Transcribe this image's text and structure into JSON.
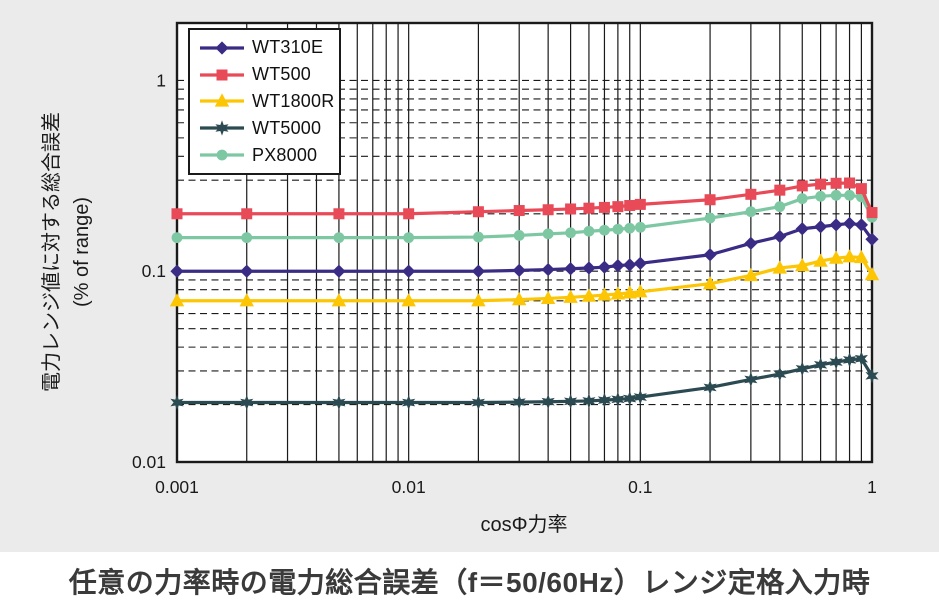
{
  "theme": {
    "chart_background": "#ebebeb",
    "plot_background": "#ffffff",
    "grid_color": "#1a1a1a",
    "axis_color": "#1a1a1a",
    "text_color": "#1a1a1a",
    "title_color": "#3a3a3a"
  },
  "chart_data": {
    "type": "line",
    "title": "任意の力率時の電力総合誤差（f＝50/60Hz）レンジ定格入力時",
    "xlabel": "cosΦ力率",
    "ylabel": "電力レンジ値に対する総合誤差",
    "ylabel_unit": "(% of range)",
    "x_scale": "log",
    "y_scale": "log",
    "xlim": [
      0.001,
      1
    ],
    "ylim": [
      0.01,
      2
    ],
    "x_tick_labels": [
      "0.001",
      "0.01",
      "0.1",
      "1"
    ],
    "x_tick_values": [
      0.001,
      0.01,
      0.1,
      1
    ],
    "y_tick_labels": [
      "1",
      "0.1",
      "0.01"
    ],
    "y_tick_values": [
      1,
      0.1,
      0.01
    ],
    "grid": {
      "vertical_style": "solid",
      "horizontal_style": "dashed"
    },
    "legend_position": "top-left",
    "x": [
      0.001,
      0.002,
      0.005,
      0.01,
      0.02,
      0.03,
      0.04,
      0.05,
      0.06,
      0.07,
      0.08,
      0.09,
      0.1,
      0.2,
      0.3,
      0.4,
      0.5,
      0.6,
      0.7,
      0.8,
      0.9,
      1
    ],
    "series": [
      {
        "name": "WT310E",
        "color": "#3a2c85",
        "marker": "diamond",
        "values": [
          0.1,
          0.1,
          0.1,
          0.1,
          0.1,
          0.101,
          0.102,
          0.103,
          0.104,
          0.105,
          0.107,
          0.108,
          0.11,
          0.122,
          0.14,
          0.152,
          0.167,
          0.171,
          0.175,
          0.178,
          0.175,
          0.147
        ]
      },
      {
        "name": "WT500",
        "color": "#e84a58",
        "marker": "square",
        "values": [
          0.2,
          0.2,
          0.2,
          0.2,
          0.205,
          0.208,
          0.21,
          0.212,
          0.214,
          0.216,
          0.218,
          0.221,
          0.224,
          0.237,
          0.253,
          0.266,
          0.28,
          0.286,
          0.289,
          0.29,
          0.271,
          0.203
        ]
      },
      {
        "name": "WT1800R",
        "color": "#fcc605",
        "marker": "triangle",
        "values": [
          0.07,
          0.07,
          0.07,
          0.07,
          0.07,
          0.071,
          0.072,
          0.073,
          0.074,
          0.075,
          0.076,
          0.077,
          0.078,
          0.086,
          0.095,
          0.104,
          0.107,
          0.113,
          0.117,
          0.119,
          0.118,
          0.096
        ]
      },
      {
        "name": "WT5000",
        "color": "#2c4a52",
        "marker": "star6",
        "values": [
          0.0205,
          0.0205,
          0.0205,
          0.0205,
          0.0205,
          0.0206,
          0.0207,
          0.0208,
          0.0209,
          0.0211,
          0.0213,
          0.0215,
          0.0219,
          0.0246,
          0.0271,
          0.0289,
          0.0308,
          0.0323,
          0.0334,
          0.0343,
          0.0348,
          0.0283
        ]
      },
      {
        "name": "PX8000",
        "color": "#7dc8a2",
        "marker": "circle",
        "values": [
          0.15,
          0.15,
          0.15,
          0.15,
          0.151,
          0.154,
          0.157,
          0.159,
          0.162,
          0.164,
          0.166,
          0.168,
          0.17,
          0.19,
          0.205,
          0.218,
          0.24,
          0.247,
          0.25,
          0.25,
          0.245,
          0.192
        ]
      }
    ]
  }
}
